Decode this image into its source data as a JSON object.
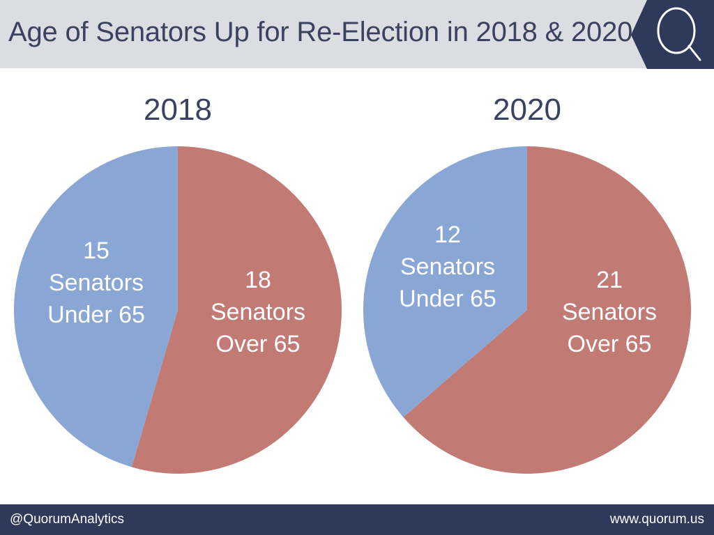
{
  "header": {
    "title": "Age of Senators Up for Re-Election in 2018 & 2020",
    "logo_letter": "Q"
  },
  "chart_data": [
    {
      "type": "pie",
      "title": "2018",
      "slices": [
        {
          "label": [
            "15",
            "Senators",
            "Under 65"
          ],
          "value": 15,
          "color": "#8aa6d4"
        },
        {
          "label": [
            "18",
            "Senators",
            "Over 65"
          ],
          "value": 18,
          "color": "#c17a74"
        }
      ]
    },
    {
      "type": "pie",
      "title": "2020",
      "slices": [
        {
          "label": [
            "12",
            "Senators",
            "Under 65"
          ],
          "value": 12,
          "color": "#8aa6d4"
        },
        {
          "label": [
            "21",
            "Senators",
            "Over 65"
          ],
          "value": 21,
          "color": "#c17a74"
        }
      ]
    }
  ],
  "footer": {
    "handle": "@QuorumAnalytics",
    "website": "www.quorum.us"
  },
  "colors": {
    "header_bg": "#dcdde2",
    "brand_navy": "#2f3a5a",
    "under_65": "#8aa6d4",
    "over_65": "#c17a74"
  }
}
